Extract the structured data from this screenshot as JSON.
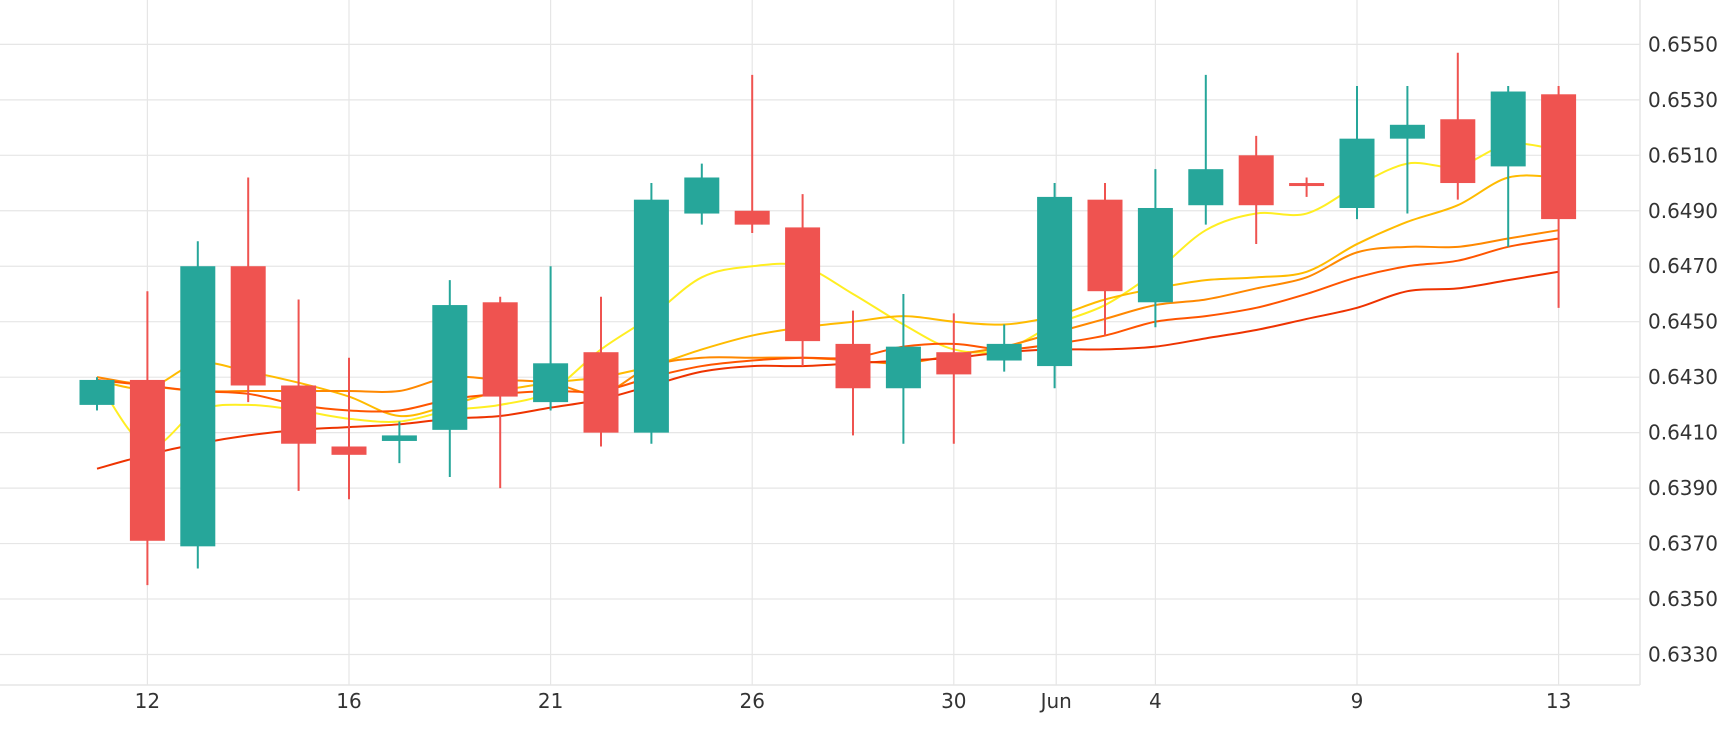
{
  "chart_data": {
    "type": "candlestick",
    "x_labels": [
      "12",
      "16",
      "21",
      "26",
      "30",
      "Jun",
      "4",
      "9",
      "13"
    ],
    "y_ticks": [
      "0.6550",
      "0.6530",
      "0.6510",
      "0.6490",
      "0.6470",
      "0.6450",
      "0.6430",
      "0.6410",
      "0.6390",
      "0.6370",
      "0.6350",
      "0.6330"
    ],
    "ylim": [
      0.6319,
      0.6566
    ],
    "grid": true,
    "colors": {
      "up": "#26a69a",
      "down": "#ef5350",
      "grid": "#e6e6e6",
      "ma_1": "#ffee22",
      "ma_2": "#ffbb00",
      "ma_3": "#ff8800",
      "ma_4": "#ff5500",
      "ma_5": "#ee3300"
    },
    "candles": [
      {
        "date": "May 11",
        "open": 0.642,
        "high": 0.643,
        "low": 0.6418,
        "close": 0.6429
      },
      {
        "date": "May 12",
        "open": 0.6429,
        "high": 0.6461,
        "low": 0.6355,
        "close": 0.6371
      },
      {
        "date": "May 13",
        "open": 0.6369,
        "high": 0.6479,
        "low": 0.6361,
        "close": 0.647
      },
      {
        "date": "May 14",
        "open": 0.647,
        "high": 0.6502,
        "low": 0.6421,
        "close": 0.6427
      },
      {
        "date": "May 15",
        "open": 0.6427,
        "high": 0.6458,
        "low": 0.6389,
        "close": 0.6406
      },
      {
        "date": "May 16",
        "open": 0.6405,
        "high": 0.6437,
        "low": 0.6386,
        "close": 0.6402
      },
      {
        "date": "May 17",
        "open": 0.6407,
        "high": 0.6414,
        "low": 0.6399,
        "close": 0.6409
      },
      {
        "date": "May 18",
        "open": 0.6411,
        "high": 0.6465,
        "low": 0.6394,
        "close": 0.6456
      },
      {
        "date": "May 19",
        "open": 0.6457,
        "high": 0.6459,
        "low": 0.639,
        "close": 0.6423
      },
      {
        "date": "May 20",
        "open": 0.6421,
        "high": 0.647,
        "low": 0.6418,
        "close": 0.6435
      },
      {
        "date": "May 21",
        "open": 0.6439,
        "high": 0.6459,
        "low": 0.6405,
        "close": 0.641
      },
      {
        "date": "May 22",
        "open": 0.641,
        "high": 0.65,
        "low": 0.6406,
        "close": 0.6494
      },
      {
        "date": "May 23",
        "open": 0.6489,
        "high": 0.6507,
        "low": 0.6485,
        "close": 0.6502
      },
      {
        "date": "May 24",
        "open": 0.649,
        "high": 0.6539,
        "low": 0.6482,
        "close": 0.6485
      },
      {
        "date": "May 25",
        "open": 0.6484,
        "high": 0.6496,
        "low": 0.6434,
        "close": 0.6443
      },
      {
        "date": "May 26",
        "open": 0.6442,
        "high": 0.6454,
        "low": 0.6409,
        "close": 0.6426
      },
      {
        "date": "May 27",
        "open": 0.6426,
        "high": 0.646,
        "low": 0.6406,
        "close": 0.6441
      },
      {
        "date": "May 28",
        "open": 0.6439,
        "high": 0.6453,
        "low": 0.6406,
        "close": 0.6431
      },
      {
        "date": "May 29",
        "open": 0.6436,
        "high": 0.6449,
        "low": 0.6432,
        "close": 0.6442
      },
      {
        "date": "Jun 1",
        "open": 0.6434,
        "high": 0.65,
        "low": 0.6426,
        "close": 0.6495
      },
      {
        "date": "Jun 2",
        "open": 0.6494,
        "high": 0.65,
        "low": 0.6445,
        "close": 0.6461
      },
      {
        "date": "Jun 3",
        "open": 0.6457,
        "high": 0.6505,
        "low": 0.6448,
        "close": 0.6491
      },
      {
        "date": "Jun 4",
        "open": 0.6492,
        "high": 0.6539,
        "low": 0.6485,
        "close": 0.6505
      },
      {
        "date": "Jun 5",
        "open": 0.651,
        "high": 0.6517,
        "low": 0.6478,
        "close": 0.6492
      },
      {
        "date": "Jun 6",
        "open": 0.65,
        "high": 0.6502,
        "low": 0.6495,
        "close": 0.6499
      },
      {
        "date": "Jun 8",
        "open": 0.6491,
        "high": 0.6535,
        "low": 0.6487,
        "close": 0.6516
      },
      {
        "date": "Jun 9",
        "open": 0.6516,
        "high": 0.6535,
        "low": 0.6489,
        "close": 0.6521
      },
      {
        "date": "Jun 10",
        "open": 0.6523,
        "high": 0.6547,
        "low": 0.6494,
        "close": 0.65
      },
      {
        "date": "Jun 11",
        "open": 0.6506,
        "high": 0.6535,
        "low": 0.6477,
        "close": 0.6533
      },
      {
        "date": "Jun 12",
        "open": 0.6532,
        "high": 0.6535,
        "low": 0.6455,
        "close": 0.6487
      }
    ],
    "moving_averages": [
      {
        "color_key": "ma_1",
        "values": [
          0.6429,
          0.6405,
          0.6418,
          0.642,
          0.6418,
          0.6415,
          0.6414,
          0.6418,
          0.642,
          0.6425,
          0.644,
          0.6452,
          0.6466,
          0.647,
          0.647,
          0.646,
          0.6449,
          0.644,
          0.644,
          0.6449,
          0.6456,
          0.6468,
          0.6483,
          0.6489,
          0.6489,
          0.6499,
          0.6507,
          0.6506,
          0.6514,
          0.6512
        ]
      },
      {
        "color_key": "ma_2",
        "values": [
          0.6429,
          0.6426,
          0.6435,
          0.6432,
          0.6428,
          0.6423,
          0.6416,
          0.642,
          0.6425,
          0.6428,
          0.643,
          0.6434,
          0.644,
          0.6445,
          0.6448,
          0.645,
          0.6452,
          0.645,
          0.6449,
          0.6452,
          0.6458,
          0.6462,
          0.6465,
          0.6466,
          0.6468,
          0.6478,
          0.6486,
          0.6492,
          0.6502,
          0.6502
        ]
      },
      {
        "color_key": "ma_3",
        "values": [
          0.643,
          0.6427,
          0.6425,
          0.6425,
          0.6425,
          0.6425,
          0.6425,
          0.643,
          0.6429,
          0.6428,
          0.6424,
          0.6434,
          0.6437,
          0.6437,
          0.6437,
          0.6436,
          0.6435,
          0.6438,
          0.6441,
          0.6446,
          0.6451,
          0.6456,
          0.6458,
          0.6462,
          0.6466,
          0.6475,
          0.6477,
          0.6477,
          0.648,
          0.6483
        ]
      },
      {
        "color_key": "ma_4",
        "values": [
          0.6429,
          0.6427,
          0.6425,
          0.6424,
          0.642,
          0.6418,
          0.6418,
          0.6422,
          0.6424,
          0.6425,
          0.6425,
          0.643,
          0.6434,
          0.6436,
          0.6437,
          0.6437,
          0.6441,
          0.6442,
          0.644,
          0.6442,
          0.6445,
          0.645,
          0.6452,
          0.6455,
          0.646,
          0.6466,
          0.647,
          0.6472,
          0.6477,
          0.648
        ]
      },
      {
        "color_key": "ma_5",
        "values": [
          0.6397,
          0.6402,
          0.6406,
          0.6409,
          0.6411,
          0.6412,
          0.6413,
          0.6415,
          0.6416,
          0.6419,
          0.6422,
          0.6427,
          0.6432,
          0.6434,
          0.6434,
          0.6435,
          0.6436,
          0.6437,
          0.6439,
          0.644,
          0.644,
          0.6441,
          0.6444,
          0.6447,
          0.6451,
          0.6455,
          0.6461,
          0.6462,
          0.6465,
          0.6468
        ]
      }
    ]
  }
}
